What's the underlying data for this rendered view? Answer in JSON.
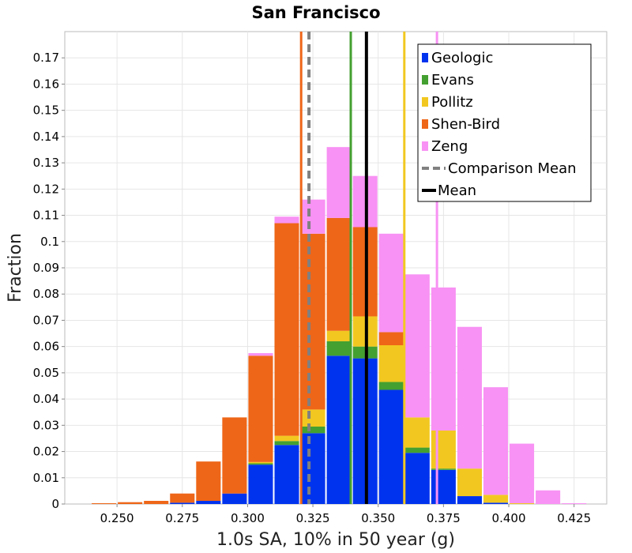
{
  "chart_data": {
    "type": "bar",
    "stacked": true,
    "title": "San Francisco",
    "xlabel": "1.0s SA, 10% in 50 year (g)",
    "ylabel": "Fraction",
    "xlim": [
      0.23,
      0.4375
    ],
    "ylim": [
      0,
      0.18
    ],
    "xticks": [
      "0.250",
      "0.275",
      "0.300",
      "0.325",
      "0.350",
      "0.375",
      "0.400",
      "0.425"
    ],
    "yticks": [
      "0",
      "0.01",
      "0.02",
      "0.03",
      "0.04",
      "0.05",
      "0.06",
      "0.07",
      "0.08",
      "0.09",
      "0.1",
      "0.11",
      "0.12",
      "0.13",
      "0.14",
      "0.15",
      "0.16",
      "0.17"
    ],
    "bin_width": 0.01,
    "bin_centers": [
      0.235,
      0.245,
      0.255,
      0.265,
      0.275,
      0.285,
      0.295,
      0.305,
      0.315,
      0.325,
      0.335,
      0.345,
      0.355,
      0.365,
      0.375,
      0.385,
      0.395,
      0.405,
      0.415,
      0.425
    ],
    "series": [
      {
        "name": "Geologic",
        "color": "#0033ee",
        "values": [
          0,
          0,
          0,
          0,
          0.0005,
          0.0012,
          0.004,
          0.015,
          0.0225,
          0.027,
          0.0565,
          0.0555,
          0.0435,
          0.0195,
          0.013,
          0.003,
          0.0005,
          0,
          0,
          0
        ]
      },
      {
        "name": "Evans",
        "color": "#44a030",
        "values": [
          0,
          0,
          0,
          0,
          0,
          0,
          0,
          0.0005,
          0.0015,
          0.0025,
          0.0055,
          0.0045,
          0.003,
          0.002,
          0.0005,
          0,
          0,
          0,
          0,
          0
        ]
      },
      {
        "name": "Pollitz",
        "color": "#f2c820",
        "values": [
          0,
          0,
          0,
          0,
          0,
          0,
          0,
          0.0005,
          0.002,
          0.0065,
          0.004,
          0.0115,
          0.014,
          0.0115,
          0.0145,
          0.0105,
          0.003,
          0.0003,
          0,
          0
        ]
      },
      {
        "name": "Shen-Bird",
        "color": "#ee6618",
        "values": [
          0,
          0.0003,
          0.0007,
          0.0012,
          0.0035,
          0.015,
          0.029,
          0.0405,
          0.081,
          0.067,
          0.043,
          0.034,
          0.005,
          0,
          0,
          0,
          0,
          0,
          0,
          0
        ]
      },
      {
        "name": "Zeng",
        "color": "#f892f4",
        "values": [
          0,
          0,
          0,
          0,
          0,
          0,
          0,
          0.001,
          0.0025,
          0.013,
          0.027,
          0.0195,
          0.0375,
          0.0545,
          0.0545,
          0.054,
          0.041,
          0.0227,
          0.0052,
          0.0003
        ]
      }
    ],
    "mean_lines": [
      {
        "name": "Geologic",
        "x": 0.3455,
        "color": "#0033ee"
      },
      {
        "name": "Evans",
        "x": 0.3395,
        "color": "#44a030"
      },
      {
        "name": "Pollitz",
        "x": 0.36,
        "color": "#f2c820"
      },
      {
        "name": "Shen-Bird",
        "x": 0.3205,
        "color": "#ee6618"
      },
      {
        "name": "Zeng",
        "x": 0.3725,
        "color": "#f892f4"
      }
    ],
    "comparison_mean": {
      "name": "Comparison Mean",
      "x": 0.3235,
      "color": "#808080"
    },
    "mean": {
      "name": "Mean",
      "x": 0.3455,
      "color": "#000000"
    },
    "legend": {
      "placement": "top-right",
      "entries": [
        {
          "label": "Geologic",
          "style": "patch",
          "color": "#0033ee"
        },
        {
          "label": "Evans",
          "style": "patch",
          "color": "#44a030"
        },
        {
          "label": "Pollitz",
          "style": "patch",
          "color": "#f2c820"
        },
        {
          "label": "Shen-Bird",
          "style": "patch",
          "color": "#ee6618"
        },
        {
          "label": "Zeng",
          "style": "patch",
          "color": "#f892f4"
        },
        {
          "label": "Comparison Mean",
          "style": "dashed",
          "color": "#808080"
        },
        {
          "label": "Mean",
          "style": "solid",
          "color": "#000000"
        }
      ]
    },
    "grid": true
  }
}
